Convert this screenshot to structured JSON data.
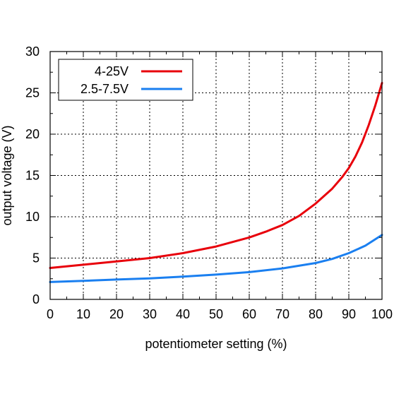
{
  "chart_data": {
    "type": "line",
    "xlabel": "potentiometer setting (%)",
    "ylabel": "output voltage (V)",
    "xlim": [
      0,
      100
    ],
    "ylim": [
      0,
      30
    ],
    "x_ticks": [
      "0",
      "10",
      "20",
      "30",
      "40",
      "50",
      "60",
      "70",
      "80",
      "90",
      "100"
    ],
    "y_ticks": [
      "0",
      "5",
      "10",
      "15",
      "20",
      "25",
      "30"
    ],
    "grid": true,
    "legend_position": "top-left",
    "series": [
      {
        "name": "4-25V",
        "color": "#e8000b",
        "x": [
          0,
          10,
          20,
          30,
          40,
          50,
          60,
          65,
          70,
          75,
          80,
          85,
          88,
          90,
          92,
          94,
          96,
          98,
          100
        ],
        "y": [
          3.8,
          4.2,
          4.6,
          5.0,
          5.6,
          6.4,
          7.5,
          8.2,
          9.0,
          10.1,
          11.6,
          13.4,
          14.8,
          15.9,
          17.3,
          19.0,
          21.1,
          23.5,
          26.2
        ]
      },
      {
        "name": "2.5-7.5V",
        "color": "#1a7ff0",
        "x": [
          0,
          10,
          20,
          30,
          40,
          50,
          60,
          70,
          80,
          85,
          90,
          95,
          100
        ],
        "y": [
          2.1,
          2.25,
          2.4,
          2.55,
          2.75,
          3.0,
          3.3,
          3.75,
          4.4,
          4.9,
          5.6,
          6.5,
          7.8
        ]
      }
    ]
  }
}
